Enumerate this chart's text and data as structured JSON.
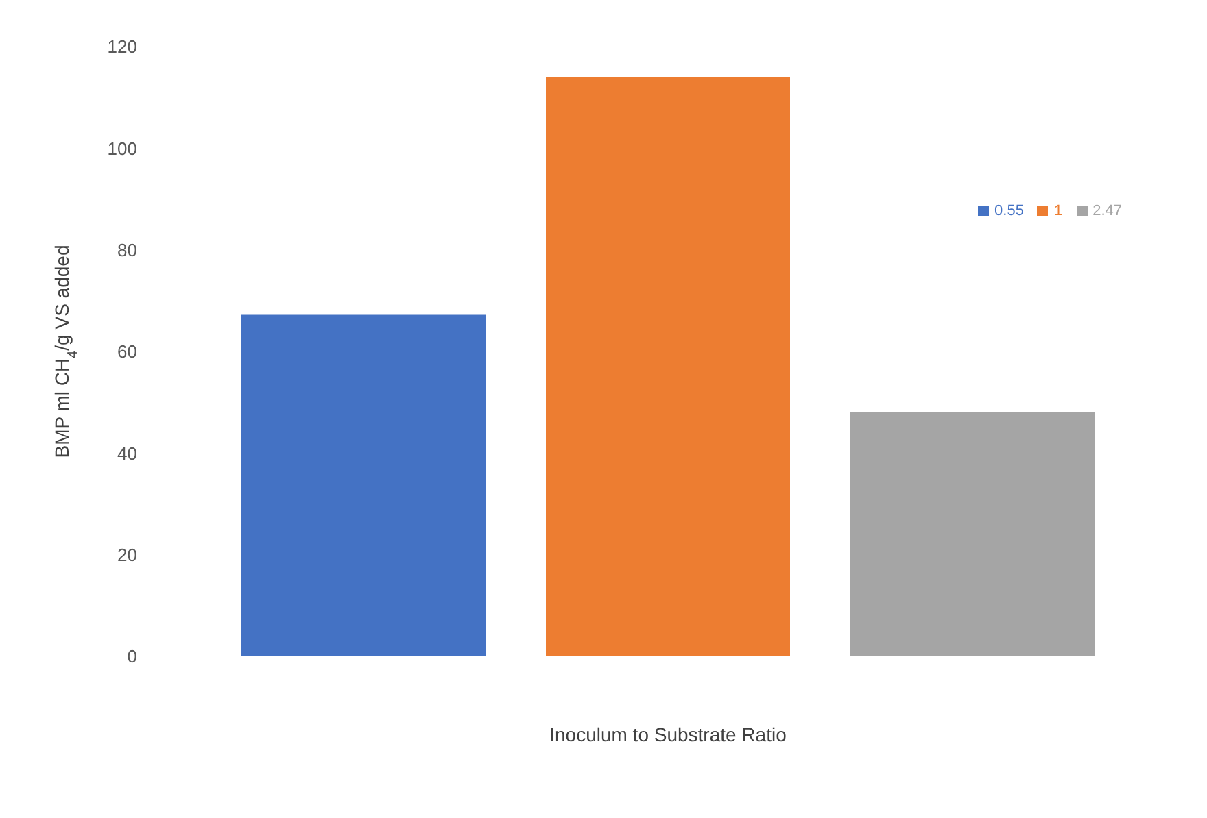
{
  "chart_data": {
    "type": "bar",
    "categories": [
      null
    ],
    "xlabel": "Inoculum to Substrate Ratio",
    "ylabel": "BMP ml CH$_{4}$/g VS added",
    "series": [
      {
        "name": "0.55",
        "color": "#4472c4",
        "values": [
          67.2
        ]
      },
      {
        "name": "1",
        "color": "#ed7d31",
        "values": [
          114
        ]
      },
      {
        "name": "2.47",
        "color": "#a5a5a5",
        "values": [
          48.1
        ]
      }
    ],
    "ylim": [
      0,
      120
    ],
    "yticks": [
      0,
      20,
      40,
      60,
      80,
      100,
      120
    ],
    "grid": false,
    "legend": "right"
  }
}
